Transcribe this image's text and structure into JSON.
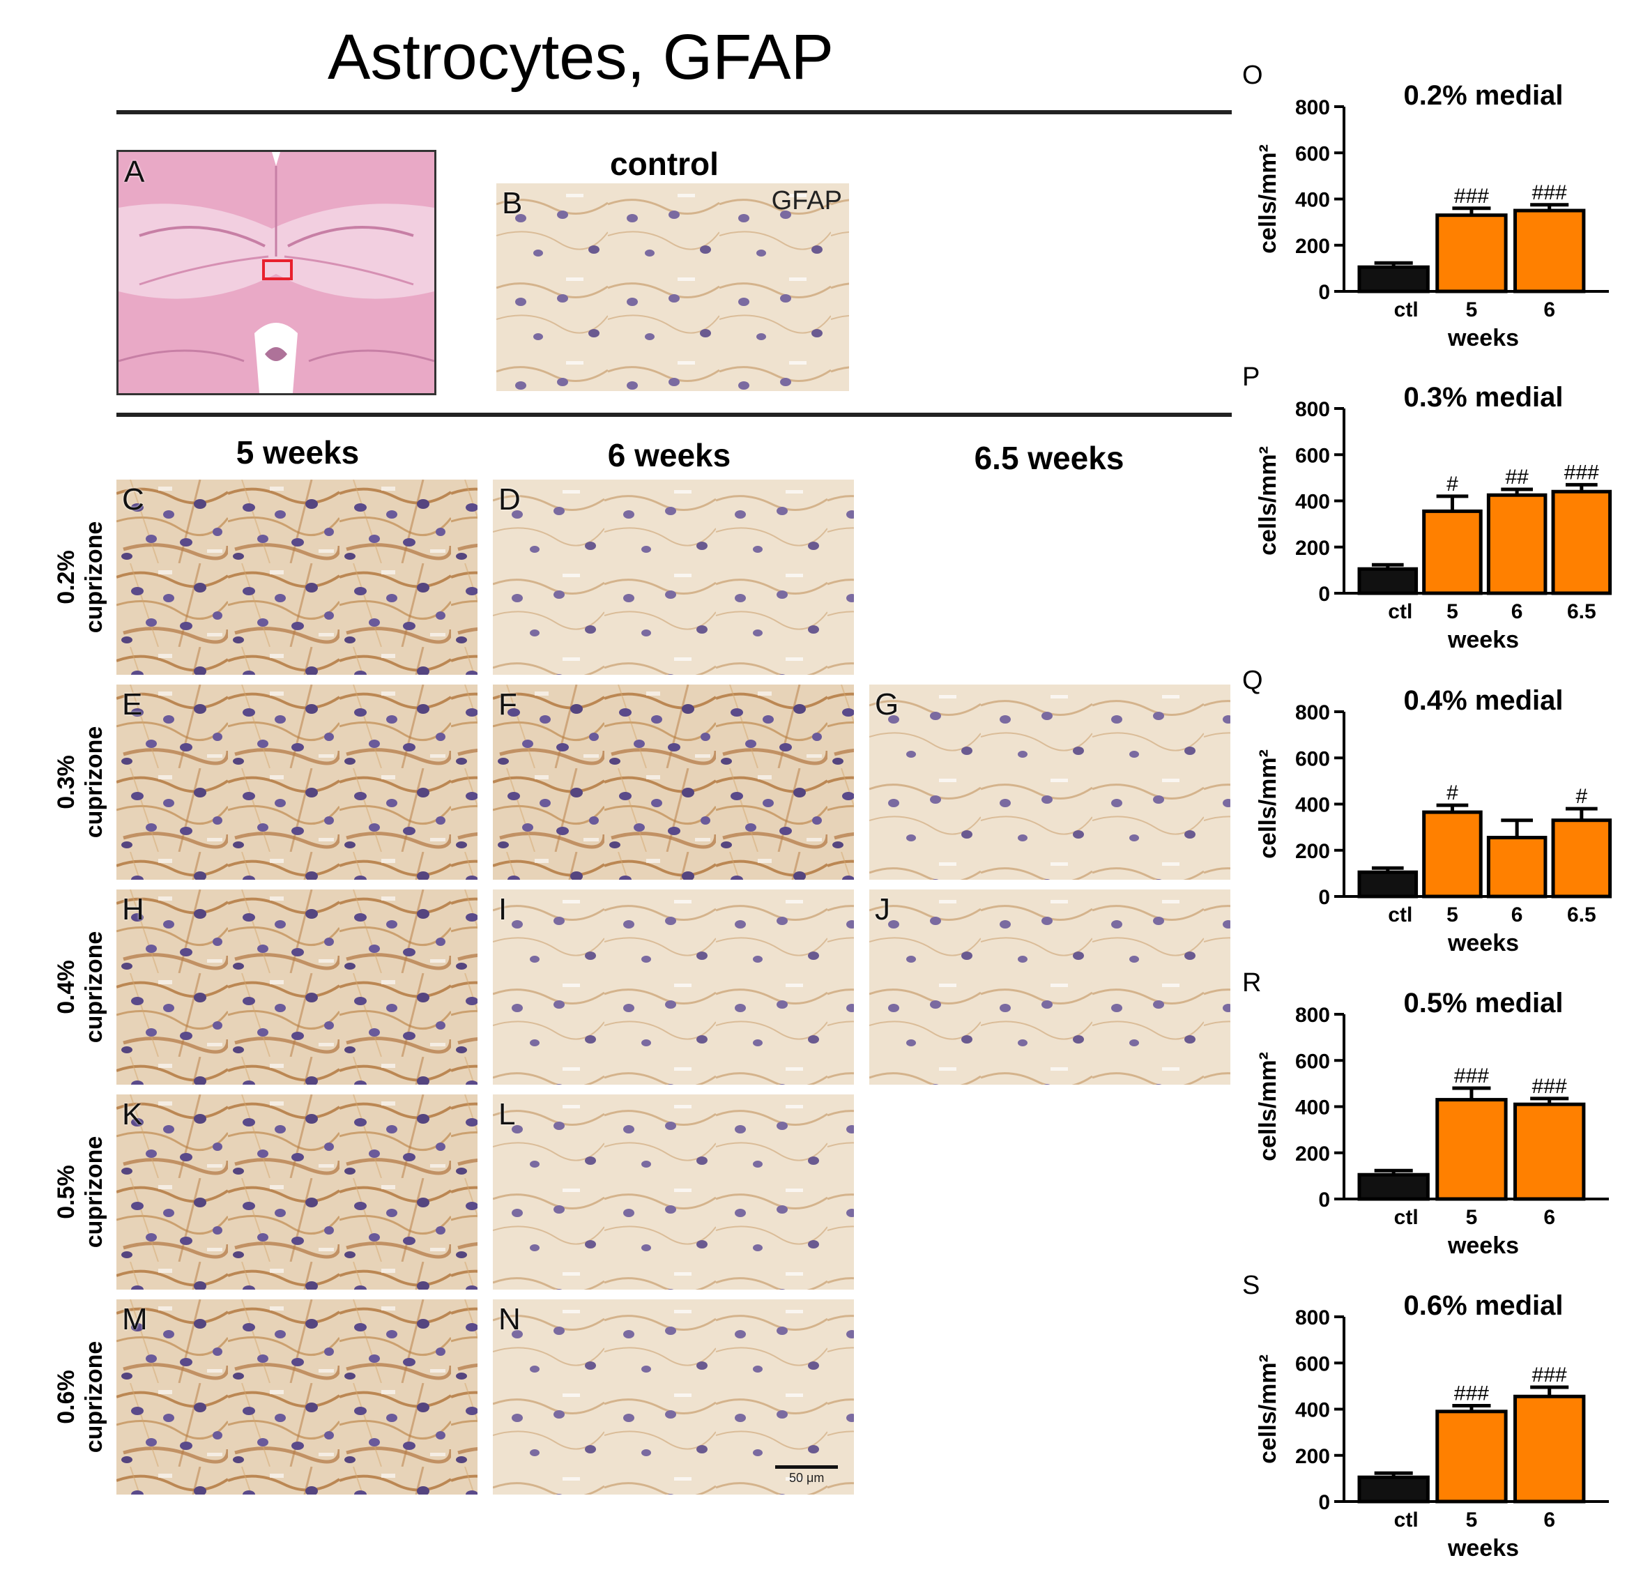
{
  "title": "Astrocytes, GFAP",
  "top_panels": {
    "A": {
      "letter": "A"
    },
    "B": {
      "letter": "B",
      "heading": "control",
      "stain_label": "GFAP"
    }
  },
  "column_titles": [
    "5 weeks",
    "6 weeks",
    "6.5 weeks"
  ],
  "row_labels": [
    {
      "line1": "0.2%",
      "line2": "cuprizone"
    },
    {
      "line1": "0.3%",
      "line2": "cuprizone"
    },
    {
      "line1": "0.4%",
      "line2": "cuprizone"
    },
    {
      "line1": "0.5%",
      "line2": "cuprizone"
    },
    {
      "line1": "0.6%",
      "line2": "cuprizone"
    }
  ],
  "micro_panels": [
    {
      "letter": "C"
    },
    {
      "letter": "D"
    },
    {
      "letter": "E"
    },
    {
      "letter": "F"
    },
    {
      "letter": "G"
    },
    {
      "letter": "H"
    },
    {
      "letter": "I"
    },
    {
      "letter": "J"
    },
    {
      "letter": "K"
    },
    {
      "letter": "L"
    },
    {
      "letter": "M"
    },
    {
      "letter": "N"
    }
  ],
  "scale_bar_label": "50 μm",
  "colors": {
    "control_bar": "#111111",
    "treated_bar": "#ff8000",
    "stain_brown": "#b0743a",
    "nuclei": "#5a4a8a",
    "he_pink": "#e9a9c6"
  },
  "chart_data": [
    {
      "letter": "O",
      "type": "bar",
      "title": "0.2% medial",
      "ylabel": "cells/mm²",
      "xlabel": "weeks",
      "categories": [
        "ctl",
        "5",
        "6"
      ],
      "values": [
        105,
        330,
        350
      ],
      "errors": [
        18,
        30,
        25
      ],
      "annotations": [
        "",
        "###",
        "###"
      ],
      "ylim": [
        0,
        800
      ],
      "yticks": [
        0,
        200,
        400,
        600,
        800
      ]
    },
    {
      "letter": "P",
      "type": "bar",
      "title": "0.3% medial",
      "ylabel": "cells/mm²",
      "xlabel": "weeks",
      "categories": [
        "ctl",
        "5",
        "6",
        "6.5"
      ],
      "values": [
        105,
        355,
        425,
        440
      ],
      "errors": [
        18,
        65,
        25,
        30
      ],
      "annotations": [
        "",
        "#",
        "##",
        "###"
      ],
      "ylim": [
        0,
        800
      ],
      "yticks": [
        0,
        200,
        400,
        600,
        800
      ]
    },
    {
      "letter": "Q",
      "type": "bar",
      "title": "0.4% medial",
      "ylabel": "cells/mm²",
      "xlabel": "weeks",
      "categories": [
        "ctl",
        "5",
        "6",
        "6.5"
      ],
      "values": [
        105,
        365,
        255,
        330
      ],
      "errors": [
        18,
        30,
        75,
        50
      ],
      "annotations": [
        "",
        "#",
        "",
        "#"
      ],
      "ylim": [
        0,
        800
      ],
      "yticks": [
        0,
        200,
        400,
        600,
        800
      ]
    },
    {
      "letter": "R",
      "type": "bar",
      "title": "0.5% medial",
      "ylabel": "cells/mm²",
      "xlabel": "weeks",
      "categories": [
        "ctl",
        "5",
        "6"
      ],
      "values": [
        105,
        430,
        410
      ],
      "errors": [
        18,
        50,
        25
      ],
      "annotations": [
        "",
        "###",
        "###"
      ],
      "ylim": [
        0,
        800
      ],
      "yticks": [
        0,
        200,
        400,
        600,
        800
      ]
    },
    {
      "letter": "S",
      "type": "bar",
      "title": "0.6% medial",
      "ylabel": "cells/mm²",
      "xlabel": "weeks",
      "categories": [
        "ctl",
        "5",
        "6"
      ],
      "values": [
        105,
        390,
        455
      ],
      "errors": [
        18,
        25,
        40
      ],
      "annotations": [
        "",
        "###",
        "###"
      ],
      "ylim": [
        0,
        800
      ],
      "yticks": [
        0,
        200,
        400,
        600,
        800
      ]
    }
  ]
}
